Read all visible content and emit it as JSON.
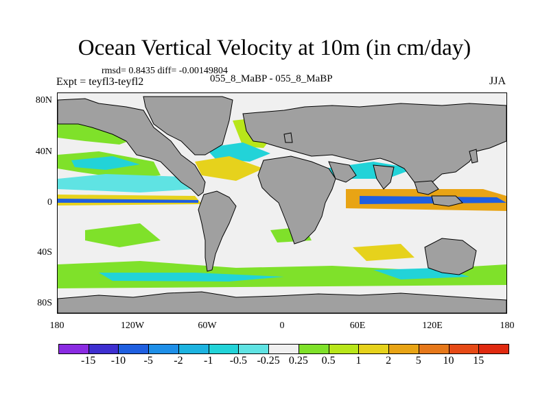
{
  "title": "Ocean Vertical Velocity at 10m (in cm/day)",
  "stats": "rmsd= 0.8435 diff= -0.00149804",
  "experiment": "Expt = teyfl3-teyfl2",
  "center_label": "055_8_MaBP - 055_8_MaBP",
  "season": "JJA",
  "lat_ticks": [
    "80N",
    "40N",
    "0",
    "40S",
    "80S"
  ],
  "lon_ticks": [
    "180",
    "120W",
    "60W",
    "0",
    "60E",
    "120E",
    "180"
  ],
  "colorbar": {
    "labels": [
      "-15",
      "-10",
      "-5",
      "-2",
      "-1",
      "-0.5",
      "-0.25",
      "0.25",
      "0.5",
      "1",
      "2",
      "5",
      "10",
      "15"
    ],
    "colors": [
      "#8a2be2",
      "#3e2fd0",
      "#1f5fe0",
      "#1e8fe8",
      "#1db3e0",
      "#22d3d8",
      "#5fe3e3",
      "#f0f0f0",
      "#7fe12a",
      "#b8e61a",
      "#e6d21c",
      "#e8a415",
      "#e6781a",
      "#e64a16",
      "#e02a10"
    ]
  },
  "map": {
    "land_color": "#a0a0a0",
    "no_change_color": "#f0f0f0"
  }
}
